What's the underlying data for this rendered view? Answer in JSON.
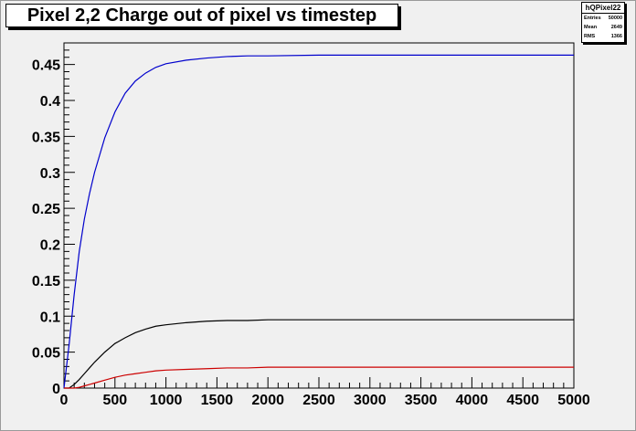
{
  "title": "Pixel 2,2 Charge out of pixel vs timestep",
  "stats": {
    "name": "hQPixel22",
    "rows": [
      {
        "label": "Entries",
        "value": "50000"
      },
      {
        "label": "Mean",
        "value": "2649"
      },
      {
        "label": "RMS",
        "value": "1366"
      }
    ]
  },
  "chart_data": {
    "type": "line",
    "title": "Pixel 2,2 Charge out of pixel vs timestep",
    "xlabel": "",
    "ylabel": "",
    "xlim": [
      0,
      5000
    ],
    "ylim": [
      0,
      0.48
    ],
    "xticks": [
      "0",
      "500",
      "1000",
      "1500",
      "2000",
      "2500",
      "3000",
      "3500",
      "4000",
      "4500",
      "5000"
    ],
    "yticks": [
      "0",
      "0.05",
      "0.1",
      "0.15",
      "0.2",
      "0.25",
      "0.3",
      "0.35",
      "0.4",
      "0.45"
    ],
    "grid": false,
    "legend": "none",
    "x": [
      0,
      50,
      100,
      150,
      200,
      250,
      300,
      400,
      500,
      600,
      700,
      800,
      900,
      1000,
      1200,
      1400,
      1600,
      1800,
      2000,
      2500,
      3000,
      3500,
      4000,
      4500,
      5000
    ],
    "series": [
      {
        "color": "#0000cc",
        "values": [
          0,
          0.06,
          0.13,
          0.19,
          0.235,
          0.27,
          0.3,
          0.348,
          0.384,
          0.41,
          0.427,
          0.438,
          0.446,
          0.451,
          0.456,
          0.459,
          0.461,
          0.462,
          0.462,
          0.463,
          0.463,
          0.463,
          0.463,
          0.463,
          0.463
        ]
      },
      {
        "color": "#000000",
        "values": [
          0,
          0.0,
          0.005,
          0.012,
          0.02,
          0.028,
          0.036,
          0.05,
          0.062,
          0.07,
          0.077,
          0.082,
          0.086,
          0.088,
          0.091,
          0.093,
          0.094,
          0.094,
          0.095,
          0.095,
          0.095,
          0.095,
          0.095,
          0.095,
          0.095
        ]
      },
      {
        "color": "#cc0000",
        "values": [
          0,
          0.0,
          0.0,
          0.001,
          0.003,
          0.005,
          0.007,
          0.011,
          0.015,
          0.018,
          0.02,
          0.022,
          0.024,
          0.025,
          0.026,
          0.027,
          0.028,
          0.028,
          0.029,
          0.029,
          0.029,
          0.029,
          0.029,
          0.029,
          0.029
        ]
      }
    ]
  }
}
